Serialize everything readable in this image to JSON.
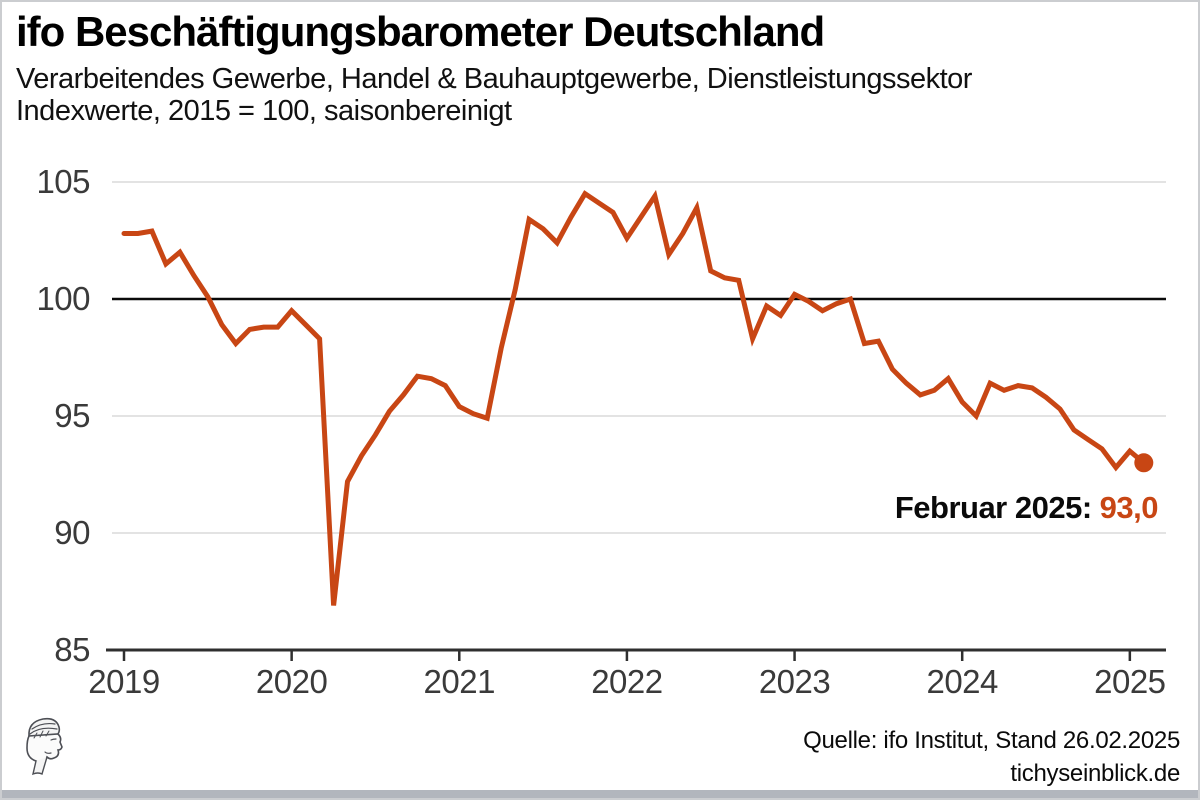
{
  "header": {
    "title": "ifo Beschäftigungsbarometer Deutschland",
    "subtitle_line1": "Verarbeitendes Gewerbe, Handel & Bauhauptgewerbe, Dienstleistungssektor",
    "subtitle_line2": "Indexwerte, 2015 = 100, saisonbereinigt"
  },
  "chart_data": {
    "type": "line",
    "title": "ifo Beschäftigungsbarometer Deutschland",
    "x_start": "2019-01",
    "x_end": "2025-02",
    "x_tick_labels": [
      "2019",
      "2020",
      "2021",
      "2022",
      "2023",
      "2024",
      "2025"
    ],
    "y_ticks": [
      85,
      90,
      95,
      100,
      105
    ],
    "ylim": [
      85,
      105
    ],
    "baseline_value": 100,
    "grid": "horizontal-only",
    "legend": "none",
    "line_color": "#c84614",
    "series": [
      {
        "name": "ifo Beschäftigungsbarometer (saisonbereinigt)",
        "monthly_values": [
          102.8,
          102.8,
          102.9,
          101.5,
          102.0,
          101.0,
          100.1,
          98.9,
          98.1,
          98.7,
          98.8,
          98.8,
          99.5,
          98.9,
          98.3,
          86.9,
          92.2,
          93.3,
          94.2,
          95.2,
          95.9,
          96.7,
          96.6,
          96.3,
          95.4,
          95.1,
          94.9,
          97.9,
          100.4,
          103.4,
          103.0,
          102.4,
          103.5,
          104.5,
          104.1,
          103.7,
          102.6,
          103.5,
          104.4,
          101.9,
          102.8,
          103.9,
          101.2,
          100.9,
          100.8,
          98.3,
          99.7,
          99.3,
          100.2,
          99.9,
          99.5,
          99.8,
          100.0,
          98.1,
          98.2,
          97.0,
          96.4,
          95.9,
          96.1,
          96.6,
          95.6,
          95.0,
          96.4,
          96.1,
          96.3,
          96.2,
          95.8,
          95.3,
          94.4,
          94.0,
          93.6,
          92.8,
          93.5,
          93.0
        ]
      }
    ],
    "last_point": {
      "label": "Februar 2025",
      "value": 93.0
    }
  },
  "annotation": {
    "label": "Februar 2025:",
    "value": "93,0"
  },
  "footer": {
    "source": "Quelle: ifo Institut, Stand 26.02.2025",
    "website": "tichyseinblick.de"
  }
}
